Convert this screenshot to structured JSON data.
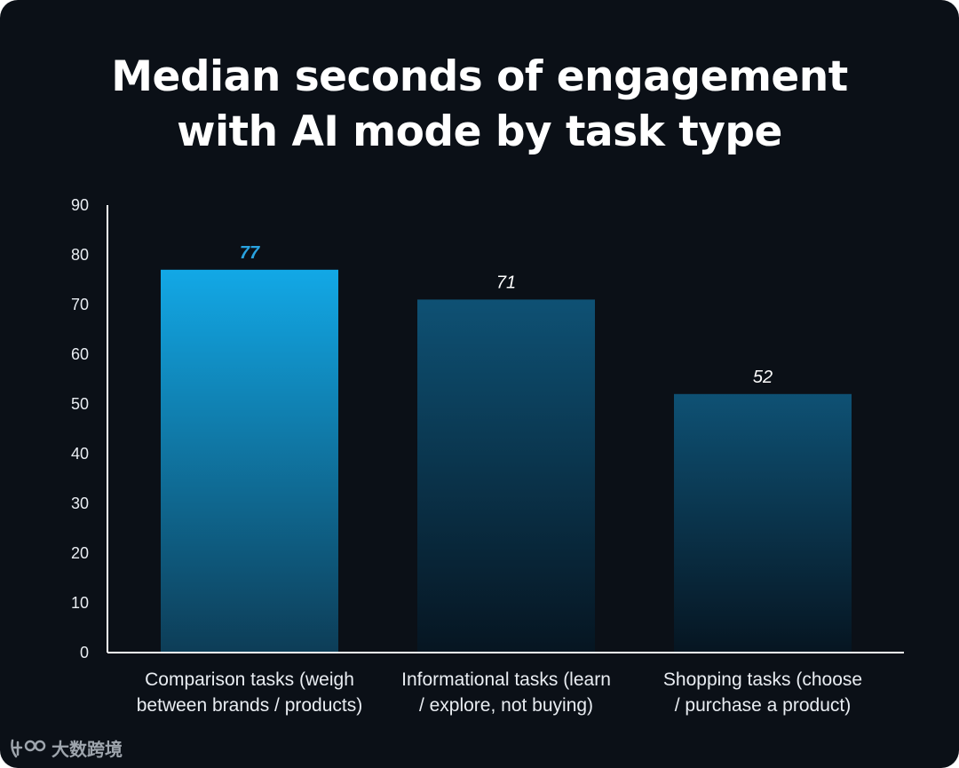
{
  "chart_data": {
    "type": "bar",
    "title": "Median seconds of engagement\nwith AI mode by task type",
    "categories": [
      [
        "Comparison tasks (weigh",
        "between brands / products)"
      ],
      [
        "Informational tasks (learn",
        "/ explore, not buying)"
      ],
      [
        "Shopping tasks (choose",
        "/ purchase a product)"
      ]
    ],
    "values": [
      77,
      71,
      52
    ],
    "value_labels": [
      "77",
      "71",
      "52"
    ],
    "ylim": [
      0,
      90
    ],
    "yticks": [
      0,
      10,
      20,
      30,
      40,
      50,
      60,
      70,
      80,
      90
    ],
    "xlabel": "",
    "ylabel": "",
    "grid": false,
    "highlight_index": 0,
    "colors": {
      "highlight_top": "#12a8e6",
      "highlight_bottom": "#0d3d57",
      "bar_top": "#0e5174",
      "bar_bottom": "#061521",
      "highlight_label": "#29a3e0",
      "label": "#ffffff",
      "axis": "#ffffff"
    }
  },
  "watermark": {
    "text": "大数跨境"
  }
}
